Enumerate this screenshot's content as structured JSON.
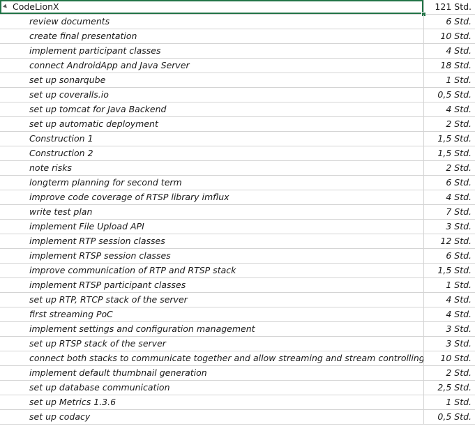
{
  "group": {
    "name": "CodeLionX",
    "hours": "121 Std."
  },
  "tasks": [
    {
      "name": "review documents",
      "hours": "6 Std."
    },
    {
      "name": "create final presentation",
      "hours": "10 Std."
    },
    {
      "name": "implement participant classes",
      "hours": "4 Std."
    },
    {
      "name": "connect AndroidApp and Java Server",
      "hours": "18 Std."
    },
    {
      "name": "set up sonarqube",
      "hours": "1 Std."
    },
    {
      "name": "set up coveralls.io",
      "hours": "0,5 Std."
    },
    {
      "name": "set up tomcat for Java Backend",
      "hours": "4 Std."
    },
    {
      "name": "set up automatic deployment",
      "hours": "2 Std."
    },
    {
      "name": "Construction 1",
      "hours": "1,5 Std."
    },
    {
      "name": "Construction 2",
      "hours": "1,5 Std."
    },
    {
      "name": "note risks",
      "hours": "2 Std."
    },
    {
      "name": "longterm planning for second term",
      "hours": "6 Std."
    },
    {
      "name": "improve code coverage of RTSP library imflux",
      "hours": "4 Std."
    },
    {
      "name": "write test plan",
      "hours": "7 Std."
    },
    {
      "name": "implement File Upload API",
      "hours": "3 Std."
    },
    {
      "name": "implement RTP session classes",
      "hours": "12 Std."
    },
    {
      "name": "implement RTSP session classes",
      "hours": "6 Std."
    },
    {
      "name": "improve communication of RTP and RTSP stack",
      "hours": "1,5 Std."
    },
    {
      "name": "implement RTSP participant classes",
      "hours": "1 Std."
    },
    {
      "name": "set up RTP, RTCP stack of the server",
      "hours": "4 Std."
    },
    {
      "name": "first streaming PoC",
      "hours": "4 Std."
    },
    {
      "name": "implement settings and configuration management",
      "hours": "3 Std."
    },
    {
      "name": "set up RTSP stack of the server",
      "hours": "3 Std."
    },
    {
      "name": "connect both stacks to communicate together and allow streaming and stream controlling",
      "hours": "10 Std."
    },
    {
      "name": "implement default thumbnail generation",
      "hours": "2 Std."
    },
    {
      "name": "set up database communication",
      "hours": "2,5 Std."
    },
    {
      "name": "set up Metrics 1.3.6",
      "hours": "1 Std."
    },
    {
      "name": "set up codacy",
      "hours": "0,5 Std."
    }
  ]
}
